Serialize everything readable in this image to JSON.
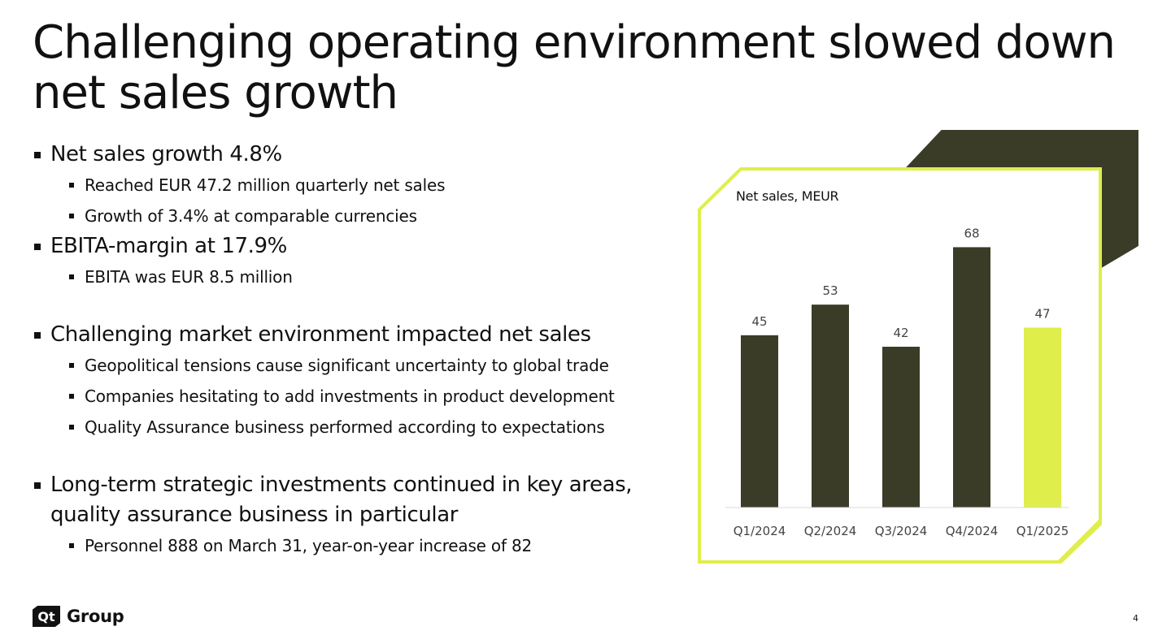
{
  "slide": {
    "title": "Challenging operating environment slowed down net sales growth",
    "page_number": "4"
  },
  "bullets": [
    {
      "text": "Net sales growth 4.8%",
      "sub": [
        "Reached EUR 47.2 million quarterly net sales",
        "Growth of 3.4% at comparable currencies"
      ]
    },
    {
      "text": "EBITA-margin at 17.9%",
      "sub": [
        "EBITA was EUR 8.5 million"
      ]
    },
    {
      "text": "Challenging market environment impacted net sales",
      "sub": [
        "Geopolitical tensions cause significant uncertainty to global trade",
        "Companies hesitating to add investments in product development",
        "Quality Assurance business performed according to expectations"
      ]
    },
    {
      "text": "Long-term strategic investments continued in key areas, quality assurance business in particular",
      "sub": [
        "Personnel 888 on March 31, year-on-year increase of 82"
      ]
    }
  ],
  "logo": {
    "mark": "Qt",
    "text": "Group"
  },
  "colors": {
    "dark": "#3a3c27",
    "accent": "#dfee4b",
    "axis": "#d9d9d9",
    "label": "#444444"
  },
  "chart_data": {
    "type": "bar",
    "title": "Net sales, MEUR",
    "categories": [
      "Q1/2024",
      "Q2/2024",
      "Q3/2024",
      "Q4/2024",
      "Q1/2025"
    ],
    "values": [
      45,
      53,
      42,
      68,
      47
    ],
    "highlight_index": 4,
    "data_labels": [
      "45",
      "53",
      "42",
      "68",
      "47"
    ],
    "ylim": [
      0,
      70
    ],
    "grid": false,
    "legend": "none"
  }
}
